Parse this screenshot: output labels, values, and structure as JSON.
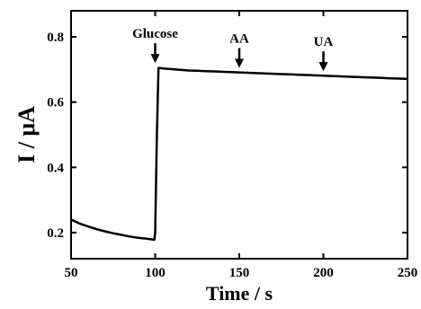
{
  "chart_data": {
    "type": "line",
    "title": "",
    "xlabel": "Time / s",
    "ylabel": "I / μA",
    "xlim": [
      50,
      250
    ],
    "ylim": [
      0.12,
      0.88
    ],
    "x_ticks": [
      50,
      100,
      150,
      200,
      250
    ],
    "x_tick_labels": [
      "50",
      "100",
      "150",
      "200",
      "250"
    ],
    "y_ticks": [
      0.2,
      0.4,
      0.6,
      0.8
    ],
    "y_tick_labels": [
      "0.2",
      "0.4",
      "0.6",
      "0.8"
    ],
    "grid": false,
    "line_color": "#000000",
    "series": [
      {
        "x": [
          50,
          55,
          60,
          65,
          70,
          75,
          80,
          85,
          90,
          95,
          99.5,
          100,
          101,
          102,
          105,
          110,
          115,
          120,
          125,
          130,
          135,
          140,
          145,
          150,
          155,
          160,
          165,
          170,
          175,
          180,
          185,
          190,
          195,
          200,
          205,
          210,
          215,
          220,
          225,
          230,
          235,
          240,
          245,
          250
        ],
        "y": [
          0.24,
          0.228,
          0.219,
          0.211,
          0.204,
          0.198,
          0.193,
          0.188,
          0.184,
          0.181,
          0.178,
          0.2,
          0.5,
          0.705,
          0.703,
          0.701,
          0.699,
          0.697,
          0.696,
          0.695,
          0.694,
          0.693,
          0.692,
          0.691,
          0.69,
          0.689,
          0.688,
          0.687,
          0.686,
          0.685,
          0.684,
          0.683,
          0.682,
          0.681,
          0.68,
          0.679,
          0.678,
          0.677,
          0.676,
          0.675,
          0.674,
          0.673,
          0.672,
          0.671
        ]
      }
    ],
    "annotations": [
      {
        "text": "Glucose",
        "x": 100,
        "arrow_tip_y": 0.72
      },
      {
        "text": "AA",
        "x": 150,
        "arrow_tip_y": 0.705
      },
      {
        "text": "UA",
        "x": 200,
        "arrow_tip_y": 0.695
      }
    ]
  }
}
